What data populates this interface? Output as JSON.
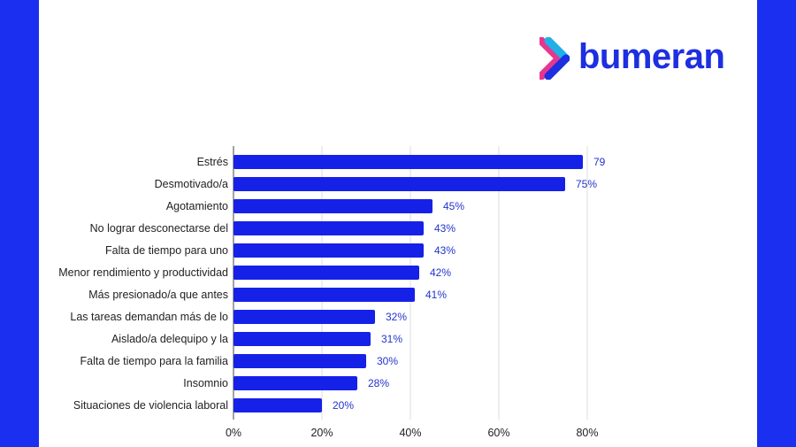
{
  "brand": {
    "logo_text": "bumeran",
    "logo_icon": "chevron-arrow-icon",
    "text_color": "#1d2fe0",
    "mark_colors": [
      "#e8358f",
      "#1fb0e6",
      "#1d2fe0"
    ]
  },
  "colors": {
    "background": "#1a2ff0",
    "bar": "#1621e8",
    "value_label": "#2233cc"
  },
  "chart_data": {
    "type": "bar",
    "orientation": "horizontal",
    "categories": [
      "Estrés",
      "Desmotivado/a",
      "Agotamiento",
      "No lograr desconectarse del",
      "Falta de tiempo para uno",
      "Menor rendimiento y productividad",
      "Más presionado/a que antes",
      "Las tareas demandan más de lo",
      "Aislado/a delequipo y la",
      "Falta de tiempo para la familia",
      "Insomnio",
      "Situaciones de violencia laboral"
    ],
    "values": [
      79,
      75,
      45,
      43,
      43,
      42,
      41,
      32,
      31,
      30,
      28,
      20
    ],
    "value_labels": [
      "79",
      "75%",
      "45%",
      "43%",
      "43%",
      "42%",
      "41%",
      "32%",
      "31%",
      "30%",
      "28%",
      "20%"
    ],
    "xticks": [
      "0%",
      "20%",
      "40%",
      "60%",
      "80%"
    ],
    "xlim": [
      0,
      80
    ],
    "grid": true,
    "title": "",
    "xlabel": "",
    "ylabel": ""
  }
}
